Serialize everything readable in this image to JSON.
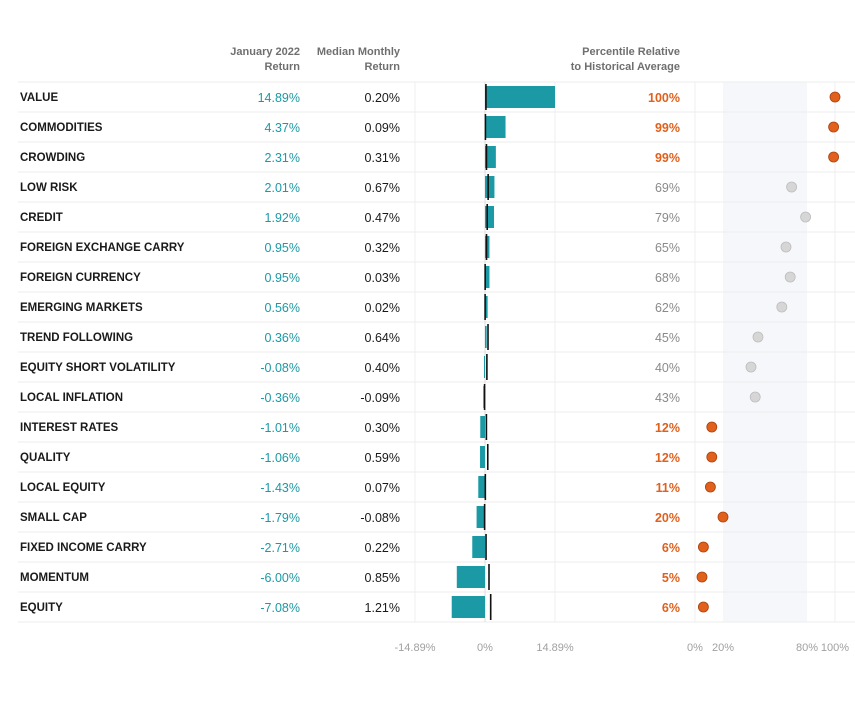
{
  "headers": {
    "return_line1": "January 2022",
    "return_line2": "Return",
    "median_line1": "Median Monthly",
    "median_line2": "Return",
    "percentile_line1": "Percentile Relative",
    "percentile_line2": "to Historical Average"
  },
  "colors": {
    "bar": "#1b9aa6",
    "return_text": "#1b9aa6",
    "hot": "#e0601c",
    "neutral_dot": "#d6d6d6",
    "band": "#f5f7fa"
  },
  "chart_data": {
    "type": "table",
    "title": "",
    "bar_axis": {
      "min": -14.89,
      "max": 14.89,
      "ticks": [
        "-14.89%",
        "0%",
        "14.89%"
      ]
    },
    "percentile_axis": {
      "min": 0,
      "max": 100,
      "ticks": [
        "0%",
        "20%",
        "80%",
        "100%"
      ],
      "band": [
        20,
        80
      ]
    },
    "rows": [
      {
        "name": "VALUE",
        "ret": 14.89,
        "ret_label": "14.89%",
        "median": 0.2,
        "median_label": "0.20%",
        "pct": 100,
        "pct_label": "100%",
        "hot": true
      },
      {
        "name": "COMMODITIES",
        "ret": 4.37,
        "ret_label": "4.37%",
        "median": 0.09,
        "median_label": "0.09%",
        "pct": 99,
        "pct_label": "99%",
        "hot": true
      },
      {
        "name": "CROWDING",
        "ret": 2.31,
        "ret_label": "2.31%",
        "median": 0.31,
        "median_label": "0.31%",
        "pct": 99,
        "pct_label": "99%",
        "hot": true
      },
      {
        "name": "LOW RISK",
        "ret": 2.01,
        "ret_label": "2.01%",
        "median": 0.67,
        "median_label": "0.67%",
        "pct": 69,
        "pct_label": "69%",
        "hot": false
      },
      {
        "name": "CREDIT",
        "ret": 1.92,
        "ret_label": "1.92%",
        "median": 0.47,
        "median_label": "0.47%",
        "pct": 79,
        "pct_label": "79%",
        "hot": false
      },
      {
        "name": "FOREIGN EXCHANGE CARRY",
        "ret": 0.95,
        "ret_label": "0.95%",
        "median": 0.32,
        "median_label": "0.32%",
        "pct": 65,
        "pct_label": "65%",
        "hot": false
      },
      {
        "name": "FOREIGN CURRENCY",
        "ret": 0.95,
        "ret_label": "0.95%",
        "median": 0.03,
        "median_label": "0.03%",
        "pct": 68,
        "pct_label": "68%",
        "hot": false
      },
      {
        "name": "EMERGING MARKETS",
        "ret": 0.56,
        "ret_label": "0.56%",
        "median": 0.02,
        "median_label": "0.02%",
        "pct": 62,
        "pct_label": "62%",
        "hot": false
      },
      {
        "name": "TREND FOLLOWING",
        "ret": 0.36,
        "ret_label": "0.36%",
        "median": 0.64,
        "median_label": "0.64%",
        "pct": 45,
        "pct_label": "45%",
        "hot": false
      },
      {
        "name": "EQUITY SHORT VOLATILITY",
        "ret": -0.08,
        "ret_label": "-0.08%",
        "median": 0.4,
        "median_label": "0.40%",
        "pct": 40,
        "pct_label": "40%",
        "hot": false
      },
      {
        "name": "LOCAL INFLATION",
        "ret": -0.36,
        "ret_label": "-0.36%",
        "median": -0.09,
        "median_label": "-0.09%",
        "pct": 43,
        "pct_label": "43%",
        "hot": false
      },
      {
        "name": "INTEREST RATES",
        "ret": -1.01,
        "ret_label": "-1.01%",
        "median": 0.3,
        "median_label": "0.30%",
        "pct": 12,
        "pct_label": "12%",
        "hot": true
      },
      {
        "name": "QUALITY",
        "ret": -1.06,
        "ret_label": "-1.06%",
        "median": 0.59,
        "median_label": "0.59%",
        "pct": 12,
        "pct_label": "12%",
        "hot": true
      },
      {
        "name": "LOCAL EQUITY",
        "ret": -1.43,
        "ret_label": "-1.43%",
        "median": 0.07,
        "median_label": "0.07%",
        "pct": 11,
        "pct_label": "11%",
        "hot": true
      },
      {
        "name": "SMALL CAP",
        "ret": -1.79,
        "ret_label": "-1.79%",
        "median": -0.08,
        "median_label": "-0.08%",
        "pct": 20,
        "pct_label": "20%",
        "hot": true
      },
      {
        "name": "FIXED INCOME CARRY",
        "ret": -2.71,
        "ret_label": "-2.71%",
        "median": 0.22,
        "median_label": "0.22%",
        "pct": 6,
        "pct_label": "6%",
        "hot": true
      },
      {
        "name": "MOMENTUM",
        "ret": -6.0,
        "ret_label": "-6.00%",
        "median": 0.85,
        "median_label": "0.85%",
        "pct": 5,
        "pct_label": "5%",
        "hot": true
      },
      {
        "name": "EQUITY",
        "ret": -7.08,
        "ret_label": "-7.08%",
        "median": 1.21,
        "median_label": "1.21%",
        "pct": 6,
        "pct_label": "6%",
        "hot": true
      }
    ]
  }
}
